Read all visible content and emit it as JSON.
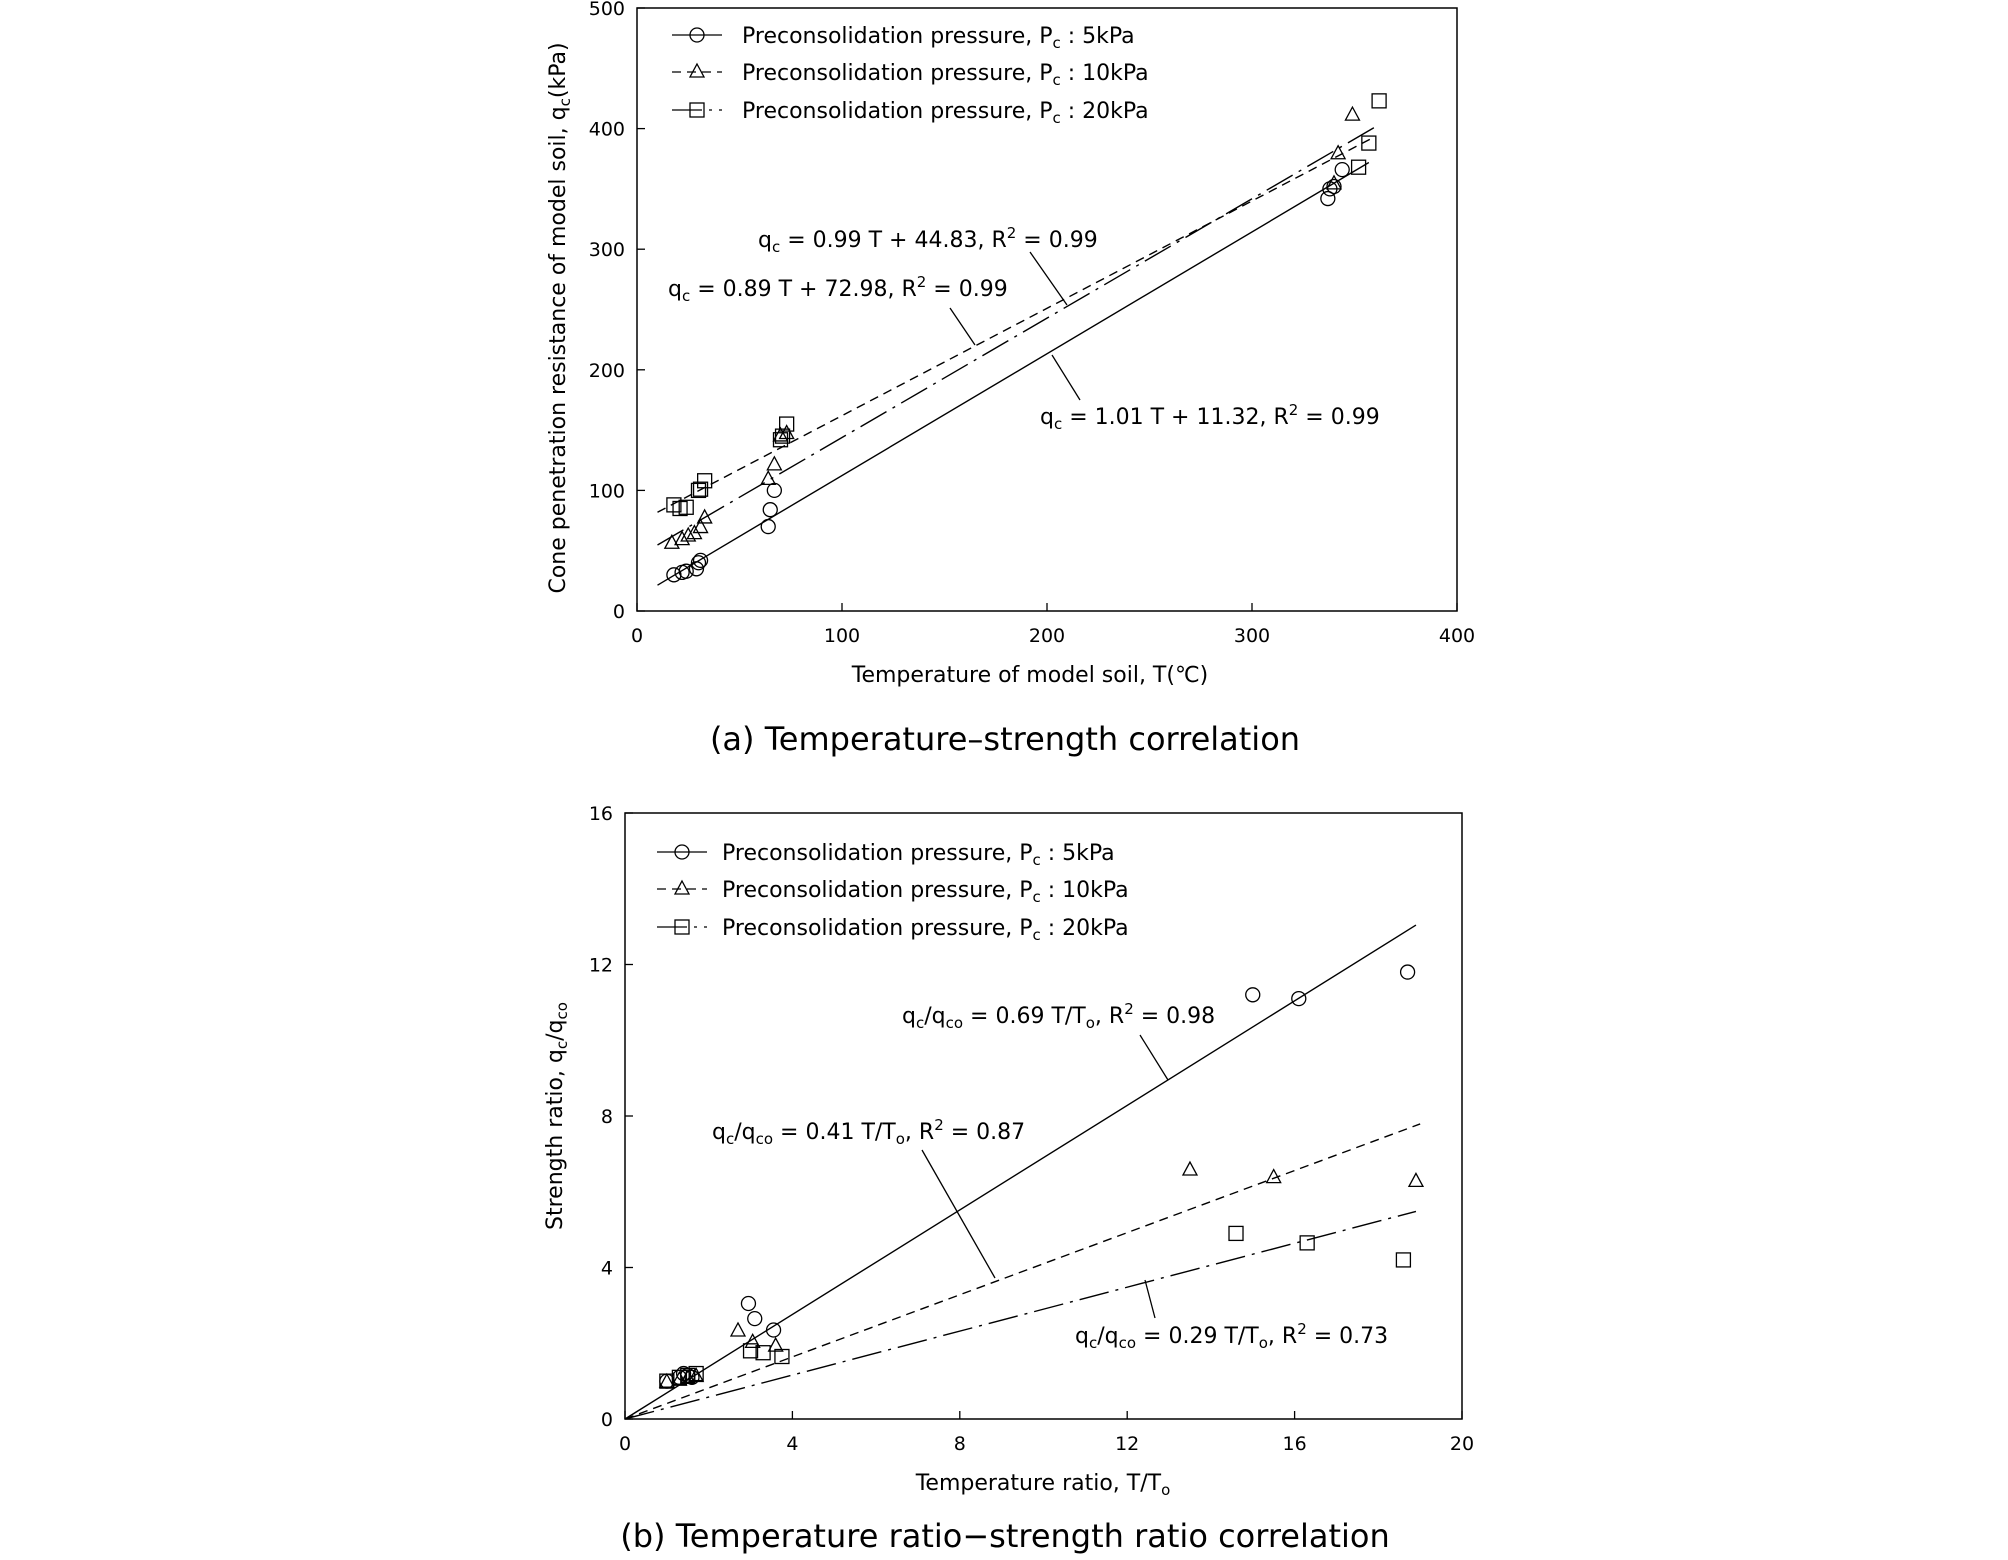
{
  "chart_data": [
    {
      "type": "scatter",
      "panel": "a",
      "caption": "(a) Temperature–strength correlation",
      "xlabel": "Temperature of model soil, T(℃)",
      "ylabel": "Cone penetration resistance of model soil, q_c(kPa)",
      "xlim": [
        0,
        400
      ],
      "ylim": [
        0,
        500
      ],
      "xticks": [
        0,
        100,
        200,
        300,
        400
      ],
      "yticks": [
        0,
        100,
        200,
        300,
        400,
        500
      ],
      "grid": false,
      "legend_position": "top-left",
      "legend": [
        {
          "label_main": "Preconsolidation pressure, P",
          "label_sub": "c",
          "label_tail": " : 5kPa",
          "marker": "circle",
          "line": "solid"
        },
        {
          "label_main": "Preconsolidation pressure, P",
          "label_sub": "c",
          "label_tail": " : 10kPa",
          "marker": "triangle",
          "line": "dashed"
        },
        {
          "label_main": "Preconsolidation pressure, P",
          "label_sub": "c",
          "label_tail": " : 20kPa",
          "marker": "square",
          "line": "dashdot"
        }
      ],
      "series": [
        {
          "marker": "circle",
          "points": [
            [
              18,
              30
            ],
            [
              22,
              32
            ],
            [
              24,
              33
            ],
            [
              29,
              35
            ],
            [
              30,
              40
            ],
            [
              31,
              42
            ],
            [
              64,
              70
            ],
            [
              65,
              84
            ],
            [
              67,
              100
            ],
            [
              337,
              342
            ],
            [
              338,
              350
            ],
            [
              340,
              352
            ],
            [
              344,
              366
            ]
          ],
          "fit": {
            "slope": 1.01,
            "intercept": 11.32,
            "x_range": [
              10,
              357
            ],
            "dash": ""
          }
        },
        {
          "marker": "triangle",
          "points": [
            [
              17,
              57
            ],
            [
              22,
              60
            ],
            [
              25,
              63
            ],
            [
              28,
              65
            ],
            [
              31,
              70
            ],
            [
              33,
              78
            ],
            [
              64,
              110
            ],
            [
              67,
              122
            ],
            [
              70,
              146
            ],
            [
              73,
              148
            ],
            [
              340,
              355
            ],
            [
              342,
              380
            ],
            [
              349,
              412
            ]
          ],
          "fit": {
            "slope": 0.89,
            "intercept": 72.98,
            "x_range": [
              10,
              360
            ],
            "dash": "9 6"
          }
        },
        {
          "marker": "square",
          "points": [
            [
              18,
              88
            ],
            [
              21,
              85
            ],
            [
              24,
              86
            ],
            [
              30,
              100
            ],
            [
              31,
              101
            ],
            [
              33,
              108
            ],
            [
              70,
              142
            ],
            [
              71,
              145
            ],
            [
              73,
              155
            ],
            [
              352,
              368
            ],
            [
              357,
              388
            ],
            [
              362,
              423
            ]
          ],
          "fit": {
            "slope": 0.99,
            "intercept": 44.83,
            "x_range": [
              10,
              362
            ],
            "dash": "30 7 3 7"
          }
        }
      ],
      "annotations": [
        {
          "pre": "q",
          "sub": "c",
          "post": " = 0.99 T + 44.83, R",
          "sup": "2",
          "tail": " = 0.99"
        },
        {
          "pre": "q",
          "sub": "c",
          "post": " = 0.89 T + 72.98, R",
          "sup": "2",
          "tail": " = 0.99"
        },
        {
          "pre": "q",
          "sub": "c",
          "post": " = 1.01 T + 11.32, R",
          "sup": "2",
          "tail": " = 0.99"
        }
      ]
    },
    {
      "type": "scatter",
      "panel": "b",
      "caption": "(b) Temperature ratio−strength ratio correlation",
      "xlabel": "Temperature ratio, T/T_o",
      "ylabel": "Strength ratio, q_c/q_co",
      "xlim": [
        0,
        20
      ],
      "ylim": [
        0,
        16
      ],
      "xticks": [
        0,
        4,
        8,
        12,
        16,
        20
      ],
      "yticks": [
        0,
        4,
        8,
        12,
        16
      ],
      "grid": false,
      "legend_position": "top-left",
      "legend": [
        {
          "label_main": "Preconsolidation pressure, P",
          "label_sub": "c",
          "label_tail": " : 5kPa",
          "marker": "circle",
          "line": "solid"
        },
        {
          "label_main": "Preconsolidation pressure, P",
          "label_sub": "c",
          "label_tail": " : 10kPa",
          "marker": "triangle",
          "line": "dashed"
        },
        {
          "label_main": "Preconsolidation pressure, P",
          "label_sub": "c",
          "label_tail": " : 20kPa",
          "marker": "square",
          "line": "dashdot"
        }
      ],
      "series": [
        {
          "marker": "circle",
          "points": [
            [
              1.0,
              1.0
            ],
            [
              1.3,
              1.1
            ],
            [
              1.4,
              1.2
            ],
            [
              1.5,
              1.15
            ],
            [
              1.6,
              1.1
            ],
            [
              2.95,
              3.05
            ],
            [
              3.1,
              2.65
            ],
            [
              3.55,
              2.35
            ],
            [
              15.0,
              11.2
            ],
            [
              16.1,
              11.1
            ],
            [
              18.7,
              11.8
            ]
          ],
          "fit": {
            "slope": 0.69,
            "intercept": 0,
            "x_range": [
              0,
              18.9
            ],
            "dash": ""
          }
        },
        {
          "marker": "triangle",
          "points": [
            [
              1.0,
              1.0
            ],
            [
              1.3,
              1.05
            ],
            [
              1.5,
              1.1
            ],
            [
              1.7,
              1.15
            ],
            [
              2.7,
              2.35
            ],
            [
              3.05,
              2.05
            ],
            [
              3.6,
              1.95
            ],
            [
              13.5,
              6.6
            ],
            [
              15.5,
              6.4
            ],
            [
              18.9,
              6.3
            ]
          ],
          "fit": {
            "slope": 0.41,
            "intercept": 0,
            "x_range": [
              0,
              19.0
            ],
            "dash": "9 6"
          }
        },
        {
          "marker": "square",
          "points": [
            [
              1.0,
              1.0
            ],
            [
              1.3,
              1.1
            ],
            [
              1.5,
              1.15
            ],
            [
              1.7,
              1.2
            ],
            [
              3.0,
              1.8
            ],
            [
              3.3,
              1.75
            ],
            [
              3.75,
              1.65
            ],
            [
              14.6,
              4.9
            ],
            [
              16.3,
              4.65
            ],
            [
              18.6,
              4.2
            ]
          ],
          "fit": {
            "slope": 0.29,
            "intercept": 0,
            "x_range": [
              0,
              18.9
            ],
            "dash": "30 7 3 7"
          }
        }
      ],
      "annotations": [
        {
          "pre": "q",
          "sub": "c",
          "post": "/q",
          "sub2": "co",
          "post2": " = 0.69 T/T",
          "sub3": "o",
          "tail": ", R",
          "sup": "2",
          "tail2": " = 0.98"
        },
        {
          "pre": "q",
          "sub": "c",
          "post": "/q",
          "sub2": "co",
          "post2": " = 0.41 T/T",
          "sub3": "o",
          "tail": ", R",
          "sup": "2",
          "tail2": " = 0.87"
        },
        {
          "pre": "q",
          "sub": "c",
          "post": "/q",
          "sub2": "co",
          "post2": " = 0.29 T/T",
          "sub3": "o",
          "tail": ", R",
          "sup": "2",
          "tail2": " = 0.73"
        }
      ]
    }
  ],
  "axis_text": {
    "a_xlabel": "Temperature of model soil, T(℃)",
    "a_ylabel_main": "Cone penetration resistance of model soil, q",
    "a_ylabel_sub": "c",
    "a_ylabel_tail": "(kPa)",
    "b_xlabel_main": "Temperature ratio, T/T",
    "b_xlabel_sub": "o",
    "b_ylabel_main": "Strength ratio, q",
    "b_ylabel_sub": "c",
    "b_ylabel_mid": "/q",
    "b_ylabel_sub2": "co"
  },
  "captions": {
    "a": "(a) Temperature–strength correlation",
    "b": "(b) Temperature ratio−strength ratio correlation"
  }
}
